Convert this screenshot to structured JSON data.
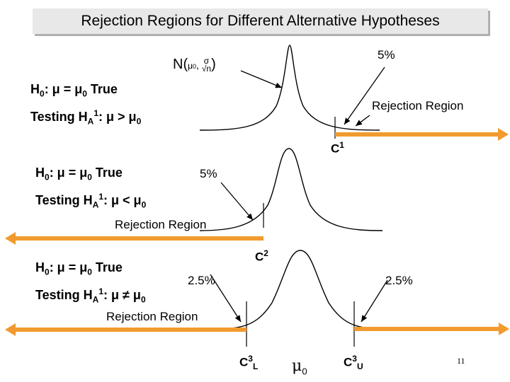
{
  "title": "Rejection Regions for Different Alternative Hypotheses",
  "distribution_label": {
    "text": "N(",
    "mean": "μ",
    "mean_sub": "0",
    "sd": "σ",
    "sqrt": "√n",
    "close": ")"
  },
  "panels": [
    {
      "h0_prefix": "H",
      "h0_sub": "0",
      "h0_mid": ": μ = μ",
      "h0_mu_sub": "0",
      "h0_suffix": " True",
      "ha_prefix": "Testing H",
      "ha_sub": "A",
      "ha_sup": "1",
      "ha_relation": ": μ > μ",
      "ha_mu_sub": "0",
      "percent": "5%",
      "rejection_label": "Rejection Region",
      "critical": {
        "name": "C",
        "sup": "1"
      },
      "tail": "right"
    },
    {
      "h0_prefix": "H",
      "h0_sub": "0",
      "h0_mid": ": μ = μ",
      "h0_mu_sub": "0",
      "h0_suffix": " True",
      "ha_prefix": "Testing H",
      "ha_sub": "A",
      "ha_sup": "1",
      "ha_relation": ": μ < μ",
      "ha_mu_sub": "0",
      "percent": "5%",
      "rejection_label": "Rejection Region",
      "critical": {
        "name": "C",
        "sup": "2"
      },
      "tail": "left"
    },
    {
      "h0_prefix": "H",
      "h0_sub": "0",
      "h0_mid": ": μ = μ",
      "h0_mu_sub": "0",
      "h0_suffix": " True",
      "ha_prefix": "Testing H",
      "ha_sub": "A",
      "ha_sup": "1",
      "ha_relation": ": μ ≠ μ",
      "ha_mu_sub": "0",
      "percent_left": "2.5%",
      "percent_right": "2.5%",
      "rejection_label": "Rejection Region",
      "critical_lower": {
        "name": "C",
        "sup": "3",
        "sub": "L"
      },
      "critical_upper": {
        "name": "C",
        "sup": "3",
        "sub": "U"
      },
      "tail": "two-sided"
    }
  ],
  "axis_center": {
    "symbol": "μ",
    "sub": "0"
  },
  "page_number": "11",
  "colors": {
    "arrow": "#f29a2e",
    "curve": "#000000",
    "title_bg": "#e8e8e8"
  }
}
